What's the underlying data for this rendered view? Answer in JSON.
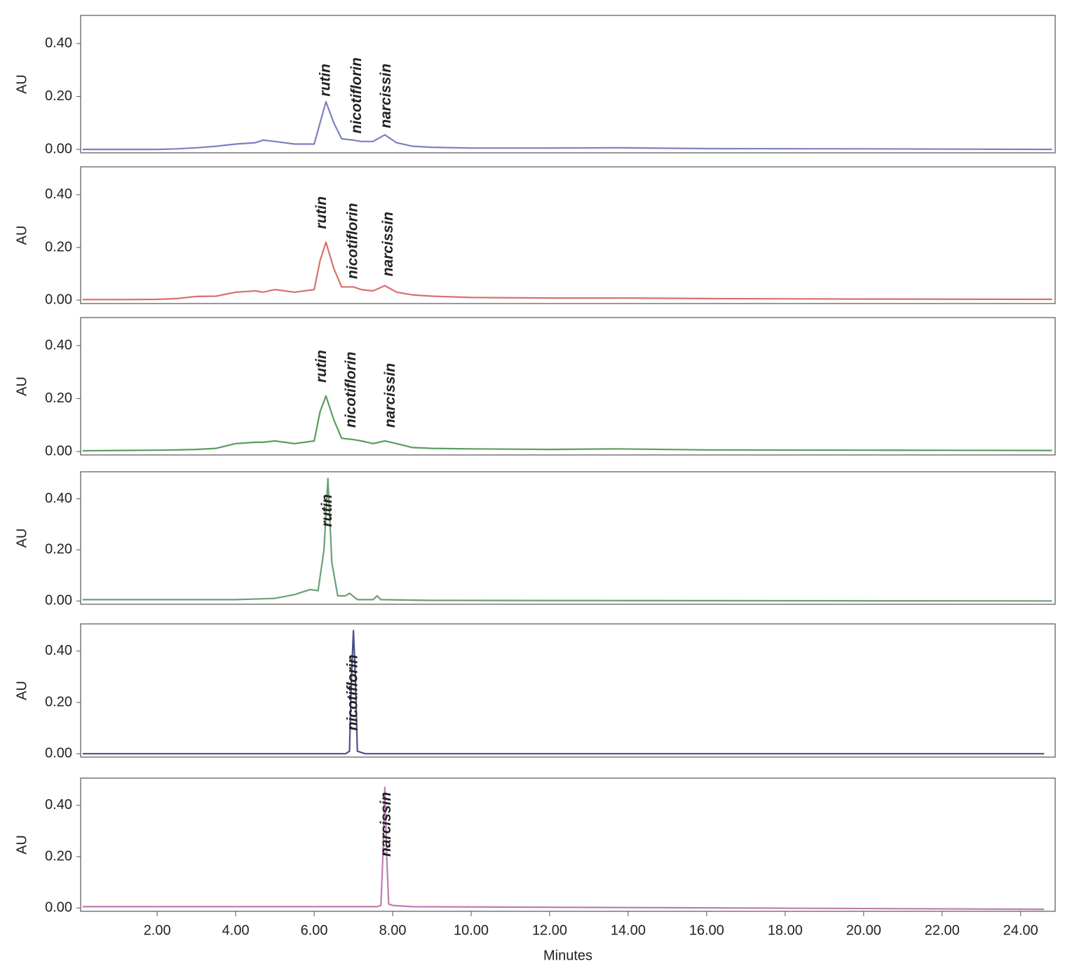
{
  "chart_data": [
    {
      "type": "line",
      "y_label": "AU",
      "xlim": [
        0.05,
        24.88
      ],
      "ylim": [
        -0.013,
        0.506
      ],
      "yticks": [
        {
          "value": 0,
          "label": "0.00"
        },
        {
          "value": 0.2,
          "label": "0.20"
        },
        {
          "value": 0.4,
          "label": "0.40"
        }
      ],
      "x": [
        0.1,
        1,
        2,
        2.5,
        3,
        3.5,
        4,
        4.5,
        4.7,
        5,
        5.5,
        6,
        6.15,
        6.3,
        6.5,
        6.7,
        7,
        7.2,
        7.5,
        7.8,
        8.1,
        8.5,
        9,
        10,
        12,
        13.7,
        16,
        20,
        24.8
      ],
      "series": [
        {
          "color": "#7c80c4",
          "values": [
            0,
            0,
            0,
            0.002,
            0.006,
            0.012,
            0.02,
            0.025,
            0.035,
            0.03,
            0.02,
            0.02,
            0.1,
            0.18,
            0.1,
            0.04,
            0.035,
            0.03,
            0.03,
            0.055,
            0.025,
            0.012,
            0.008,
            0.005,
            0.005,
            0.006,
            0.003,
            0.002,
            0
          ]
        }
      ],
      "annotations": [
        {
          "text": "rutin",
          "x": 6.3,
          "y": 0.2
        },
        {
          "text": "nicotiflorin",
          "x": 7.1,
          "y": 0.06
        },
        {
          "text": "narcissin",
          "x": 7.85,
          "y": 0.08
        }
      ]
    },
    {
      "type": "line",
      "y_label": "AU",
      "xlim": [
        0.05,
        24.88
      ],
      "ylim": [
        -0.013,
        0.506
      ],
      "yticks": [
        {
          "value": 0,
          "label": "0.00"
        },
        {
          "value": 0.2,
          "label": "0.20"
        },
        {
          "value": 0.4,
          "label": "0.40"
        }
      ],
      "x": [
        0.1,
        1,
        2,
        2.5,
        3,
        3.5,
        4,
        4.5,
        4.7,
        5,
        5.5,
        6,
        6.15,
        6.3,
        6.5,
        6.7,
        7,
        7.2,
        7.5,
        7.8,
        8.1,
        8.5,
        9,
        10,
        12,
        13.7,
        16,
        20,
        24.8
      ],
      "series": [
        {
          "color": "#d9706e",
          "values": [
            0.002,
            0.002,
            0.003,
            0.006,
            0.014,
            0.015,
            0.03,
            0.035,
            0.03,
            0.04,
            0.03,
            0.04,
            0.15,
            0.22,
            0.12,
            0.05,
            0.05,
            0.04,
            0.035,
            0.055,
            0.03,
            0.02,
            0.015,
            0.01,
            0.008,
            0.008,
            0.006,
            0.004,
            0.003
          ]
        }
      ],
      "annotations": [
        {
          "text": "rutin",
          "x": 6.2,
          "y": 0.27
        },
        {
          "text": "nicotiflorin",
          "x": 7.0,
          "y": 0.08
        },
        {
          "text": "narcissin",
          "x": 7.9,
          "y": 0.09
        }
      ]
    },
    {
      "type": "line",
      "y_label": "AU",
      "xlim": [
        0.05,
        24.88
      ],
      "ylim": [
        -0.013,
        0.506
      ],
      "yticks": [
        {
          "value": 0,
          "label": "0.00"
        },
        {
          "value": 0.2,
          "label": "0.20"
        },
        {
          "value": 0.4,
          "label": "0.40"
        }
      ],
      "x": [
        0.1,
        1,
        2,
        2.5,
        3,
        3.5,
        4,
        4.5,
        4.7,
        5,
        5.5,
        6,
        6.15,
        6.3,
        6.5,
        6.7,
        7,
        7.2,
        7.5,
        7.8,
        8.1,
        8.5,
        9,
        10,
        12,
        13.7,
        16,
        20,
        24.8
      ],
      "series": [
        {
          "color": "#5c9c5c",
          "values": [
            0.003,
            0.004,
            0.005,
            0.006,
            0.008,
            0.012,
            0.03,
            0.035,
            0.035,
            0.04,
            0.03,
            0.04,
            0.15,
            0.21,
            0.12,
            0.05,
            0.045,
            0.04,
            0.03,
            0.04,
            0.03,
            0.015,
            0.012,
            0.01,
            0.008,
            0.01,
            0.006,
            0.005,
            0.004
          ]
        }
      ],
      "annotations": [
        {
          "text": "rutin",
          "x": 6.2,
          "y": 0.26
        },
        {
          "text": "nicotiflorin",
          "x": 6.95,
          "y": 0.09
        },
        {
          "text": "narcissin",
          "x": 7.95,
          "y": 0.09
        }
      ]
    },
    {
      "type": "line",
      "y_label": "AU",
      "xlim": [
        0.05,
        24.88
      ],
      "ylim": [
        -0.013,
        0.506
      ],
      "yticks": [
        {
          "value": 0,
          "label": "0.00"
        },
        {
          "value": 0.2,
          "label": "0.20"
        },
        {
          "value": 0.4,
          "label": "0.40"
        }
      ],
      "x": [
        0.1,
        4,
        5,
        5.5,
        5.9,
        6.1,
        6.25,
        6.35,
        6.45,
        6.6,
        6.8,
        6.9,
        7.1,
        7.5,
        7.6,
        7.7,
        9,
        24.8
      ],
      "series": [
        {
          "color": "#6aa078",
          "values": [
            0.005,
            0.005,
            0.01,
            0.025,
            0.045,
            0.04,
            0.2,
            0.48,
            0.15,
            0.02,
            0.02,
            0.03,
            0.005,
            0.005,
            0.02,
            0.005,
            0.002,
            0
          ]
        }
      ],
      "annotations": [
        {
          "text": "rutin",
          "x": 6.35,
          "y": 0.29
        }
      ]
    },
    {
      "type": "line",
      "y_label": "AU",
      "xlim": [
        0.05,
        24.88
      ],
      "ylim": [
        -0.013,
        0.506
      ],
      "yticks": [
        {
          "value": 0,
          "label": "0.00"
        },
        {
          "value": 0.2,
          "label": "0.20"
        },
        {
          "value": 0.4,
          "label": "0.40"
        }
      ],
      "x": [
        0.1,
        6.8,
        6.9,
        6.95,
        7.0,
        7.05,
        7.1,
        7.3,
        24.6
      ],
      "series": [
        {
          "color": "#4a5288",
          "values": [
            0,
            0,
            0.01,
            0.3,
            0.48,
            0.3,
            0.01,
            0,
            0
          ]
        }
      ],
      "annotations": [
        {
          "text": "nicotiflorin",
          "x": 7.0,
          "y": 0.09
        }
      ]
    },
    {
      "type": "line",
      "y_label": "AU",
      "x_label": "Minutes",
      "xlim": [
        0.05,
        24.88
      ],
      "ylim": [
        -0.013,
        0.506
      ],
      "yticks": [
        {
          "value": 0,
          "label": "0.00"
        },
        {
          "value": 0.2,
          "label": "0.20"
        },
        {
          "value": 0.4,
          "label": "0.40"
        }
      ],
      "xticks": [
        {
          "value": 2,
          "label": "2.00"
        },
        {
          "value": 4,
          "label": "4.00"
        },
        {
          "value": 6,
          "label": "6.00"
        },
        {
          "value": 8,
          "label": "8.00"
        },
        {
          "value": 10,
          "label": "10.00"
        },
        {
          "value": 12,
          "label": "12.00"
        },
        {
          "value": 14,
          "label": "14.00"
        },
        {
          "value": 16,
          "label": "16.00"
        },
        {
          "value": 18,
          "label": "18.00"
        },
        {
          "value": 20,
          "label": "20.00"
        },
        {
          "value": 22,
          "label": "22.00"
        },
        {
          "value": 24,
          "label": "24.00"
        }
      ],
      "x": [
        0.1,
        7.6,
        7.7,
        7.75,
        7.8,
        7.85,
        7.9,
        8.0,
        8.5,
        24.6
      ],
      "series": [
        {
          "color": "#c07cb4",
          "values": [
            0.005,
            0.005,
            0.01,
            0.2,
            0.47,
            0.2,
            0.015,
            0.01,
            0.005,
            -0.005
          ]
        }
      ],
      "annotations": [
        {
          "text": "narcissin",
          "x": 7.85,
          "y": 0.2
        }
      ]
    }
  ]
}
